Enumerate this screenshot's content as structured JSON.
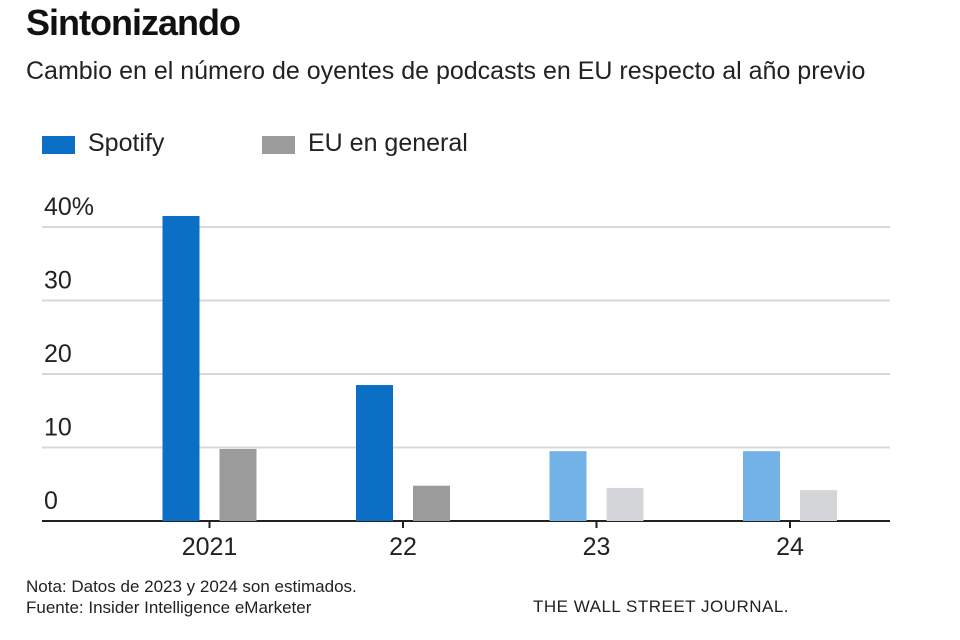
{
  "header": {
    "title": "Sintonizando",
    "subtitle": "Cambio en el número de oyentes de podcasts en EU respecto al año previo"
  },
  "legend": {
    "items": [
      {
        "label": "Spotify",
        "color": "#0b6fc6"
      },
      {
        "label": "EU en general",
        "color": "#9b9b9b"
      }
    ]
  },
  "chart_data": {
    "type": "bar",
    "categories": [
      "2021",
      "22",
      "23",
      "24"
    ],
    "series": [
      {
        "name": "Spotify",
        "values": [
          41.5,
          18.5,
          9.5,
          9.5
        ],
        "colors": [
          "#0b6fc6",
          "#0b6fc6",
          "#72b2e6",
          "#72b2e6"
        ]
      },
      {
        "name": "EU en general",
        "values": [
          9.8,
          4.8,
          4.5,
          4.2
        ],
        "colors": [
          "#9b9b9b",
          "#9b9b9b",
          "#d4d5d8",
          "#d4d5d8"
        ]
      }
    ],
    "estimated_categories": [
      "23",
      "24"
    ],
    "y_ticks": [
      "0",
      "10",
      "20",
      "30",
      "40%"
    ],
    "ylim": [
      0,
      40
    ],
    "grid": true,
    "legend_position": "top-left"
  },
  "footer": {
    "note": "Nota: Datos de 2023 y 2024 son estimados.",
    "source": "Fuente: Insider Intelligence eMarketer",
    "credit": "THE WALL STREET JOURNAL."
  }
}
